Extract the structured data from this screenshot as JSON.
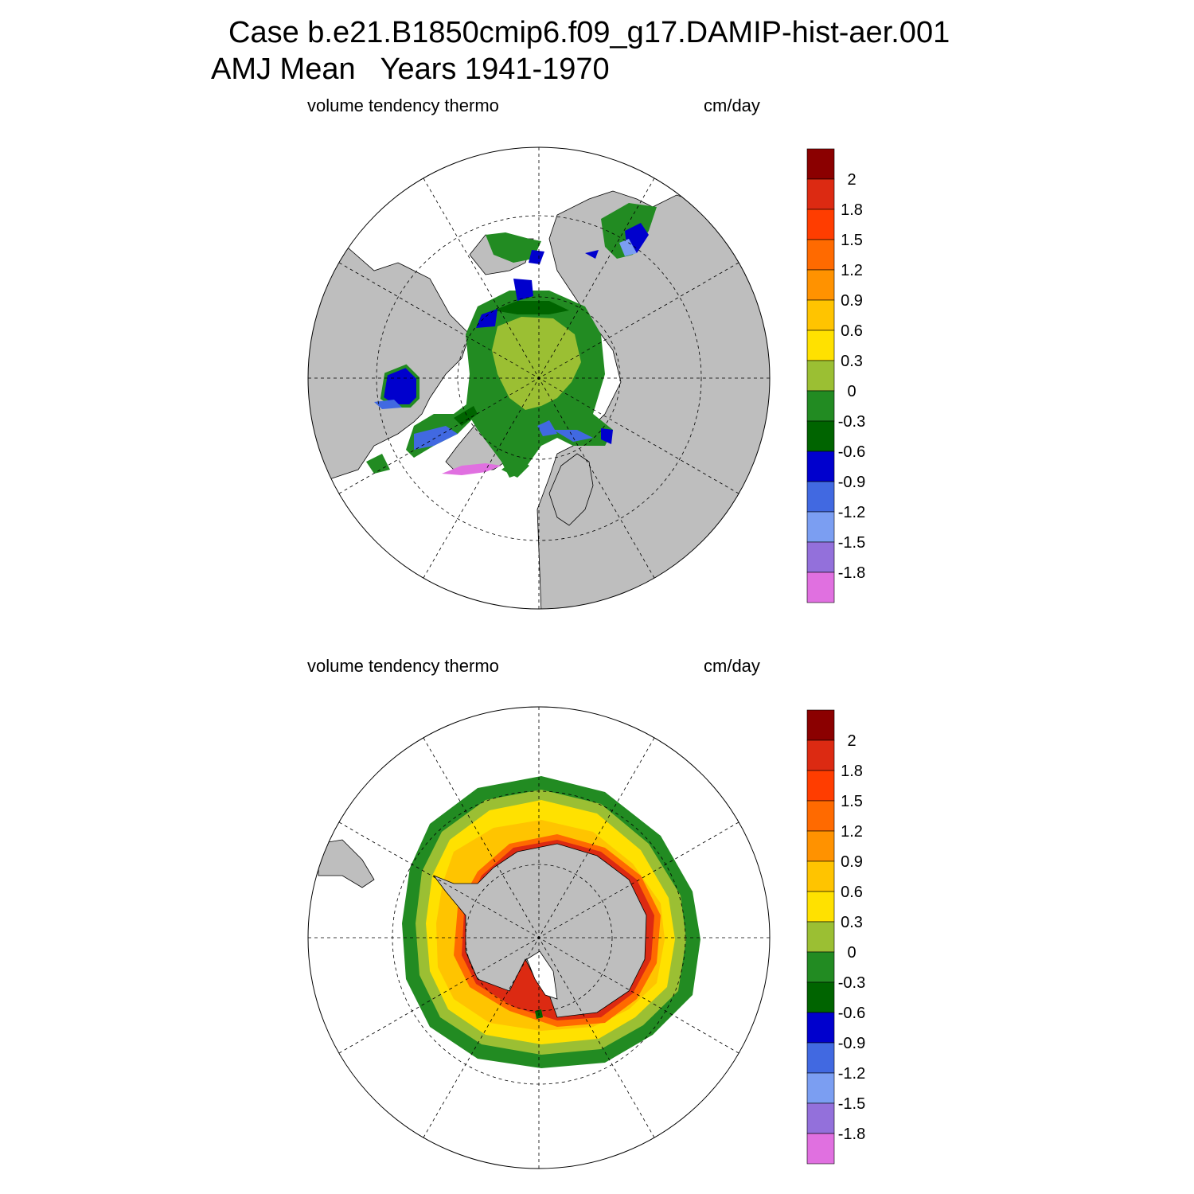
{
  "figure": {
    "title_line1": "Case b.e21.B1850cmip6.f09_g17.DAMIP-hist-aer.001",
    "title_line2": "AMJ Mean   Years 1941-1970"
  },
  "panels": [
    {
      "id": "north",
      "hemisphere": "Arctic (north polar stereographic)",
      "left_label": "volume tendency thermo",
      "right_label": "cm/day"
    },
    {
      "id": "south",
      "hemisphere": "Antarctic (south polar stereographic)",
      "left_label": "volume tendency thermo",
      "right_label": "cm/day"
    }
  ],
  "colorbar": {
    "levels": [
      "2",
      "1.8",
      "1.5",
      "1.2",
      "0.9",
      "0.6",
      "0.3",
      "0",
      "-0.3",
      "-0.6",
      "-0.9",
      "-1.2",
      "-1.5",
      "-1.8"
    ],
    "colors_top_to_bottom": [
      "#8b0000",
      "#dc2a12",
      "#ff3d00",
      "#ff6a00",
      "#ff9200",
      "#ffc400",
      "#ffe100",
      "#9bbf33",
      "#228b22",
      "#006400",
      "#0000cd",
      "#4169e1",
      "#7b9ef2",
      "#9370db",
      "#e070e0"
    ]
  },
  "colors": {
    "land": "#bebebe",
    "ocean_no_ice": "#ffffff",
    "grid": "#000000"
  }
}
